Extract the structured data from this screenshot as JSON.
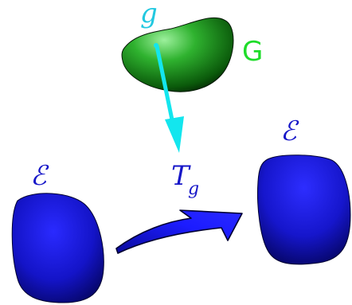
{
  "labels": {
    "group_element": "g",
    "group": "G",
    "transform_main": "T",
    "transform_sub": "g",
    "space_left": "ℰ",
    "space_right": "ℰ"
  },
  "colors": {
    "group_label": "#22c8e0",
    "group_set_label": "#1fdc2a",
    "cyan_arrow": "#13e6ee",
    "math_blue": "#1616c8",
    "blob_blue": "#1a1ad4",
    "blob_green": "#1e9a1e",
    "curved_arrow": "#1a1aee"
  }
}
